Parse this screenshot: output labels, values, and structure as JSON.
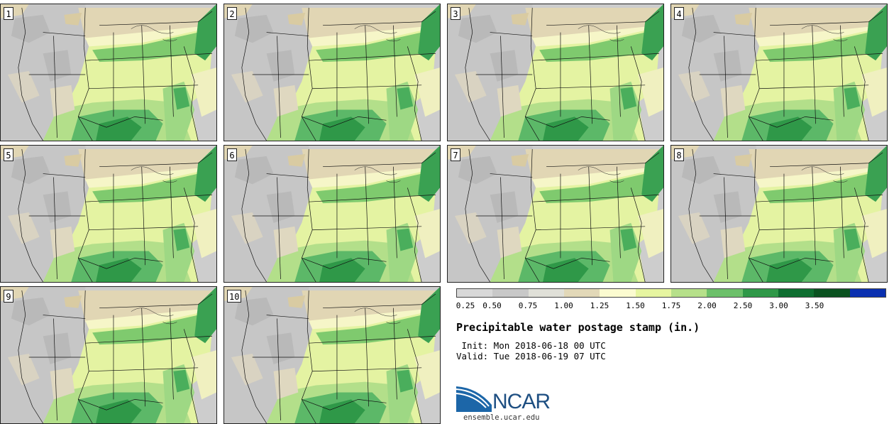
{
  "stamps": [
    "1",
    "2",
    "3",
    "4",
    "5",
    "6",
    "7",
    "8",
    "9",
    "10"
  ],
  "colorbar": {
    "colors": [
      "#d8d8d8",
      "#c8c8c8",
      "#e0e0d8",
      "#e2d8b8",
      "#fbfbd0",
      "#e6f5a0",
      "#b6e08a",
      "#6cc06a",
      "#2f9848",
      "#0e6e30",
      "#0a5220",
      "#0a30b0"
    ],
    "ticks": [
      "0.25",
      "0.50",
      "0.75",
      "1.00",
      "1.25",
      "1.50",
      "1.75",
      "2.00",
      "2.50",
      "3.00",
      "3.50"
    ]
  },
  "title": "Precipitable water postage stamp (in.)",
  "init": " Init: Mon 2018-06-18 00 UTC",
  "valid": "Valid: Tue 2018-06-19 07 UTC",
  "logo": {
    "name": "NCAR",
    "url": "ensemble.ucar.edu"
  }
}
